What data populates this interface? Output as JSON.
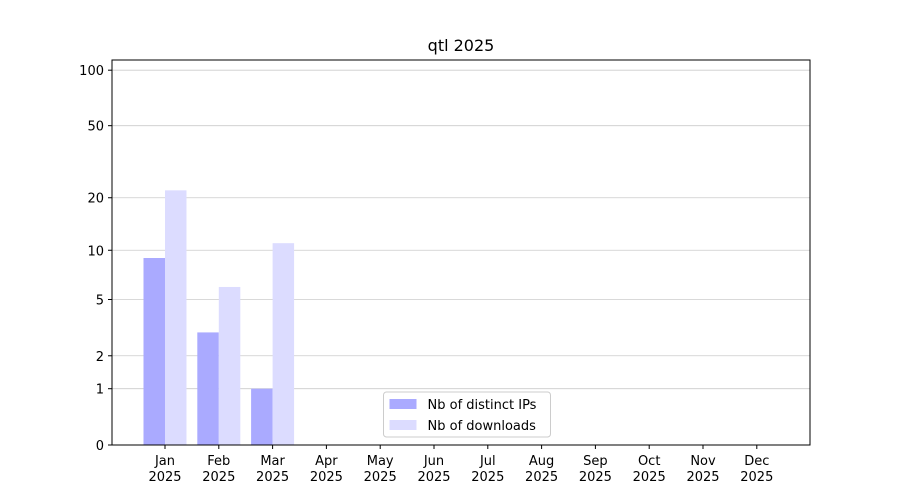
{
  "chart_data": {
    "type": "bar",
    "title": "qtl 2025",
    "categories": [
      "Jan\n2025",
      "Feb\n2025",
      "Mar\n2025",
      "Apr\n2025",
      "May\n2025",
      "Jun\n2025",
      "Jul\n2025",
      "Aug\n2025",
      "Sep\n2025",
      "Oct\n2025",
      "Nov\n2025",
      "Dec\n2025"
    ],
    "series": [
      {
        "name": "Nb of distinct IPs",
        "color": "#aaaaff",
        "values": [
          9,
          3,
          1,
          0,
          0,
          0,
          0,
          0,
          0,
          0,
          0,
          0
        ]
      },
      {
        "name": "Nb of downloads",
        "color": "#dcdcff",
        "values": [
          22,
          6,
          11,
          0,
          0,
          0,
          0,
          0,
          0,
          0,
          0,
          0
        ]
      }
    ],
    "yscale": "log1p",
    "ylim": [
      0,
      113.5
    ],
    "yticks": [
      0,
      1,
      2,
      5,
      10,
      20,
      50,
      100
    ],
    "grid": true,
    "legend": "lower center"
  }
}
